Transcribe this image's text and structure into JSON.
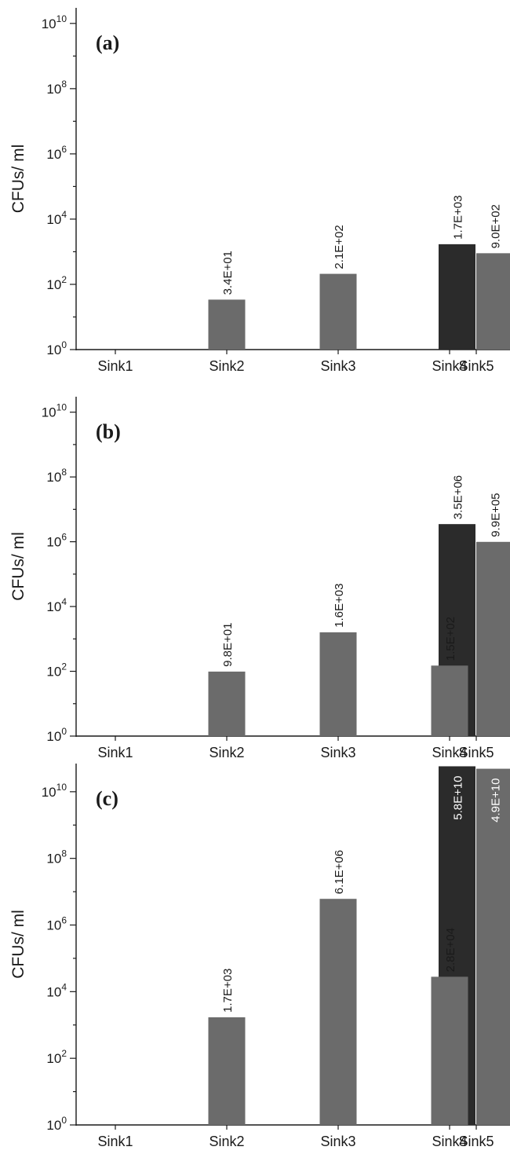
{
  "chart_data": [
    {
      "type": "bar",
      "panel_label": "(a)",
      "ylabel": "CFUs/ ml",
      "yscale": "log",
      "ylim": [
        1,
        30000000000
      ],
      "yticks": [
        1,
        100,
        10000,
        1000000,
        100000000,
        10000000000
      ],
      "ytick_labels": [
        {
          "base": "10",
          "exp": "0"
        },
        {
          "base": "10",
          "exp": "2"
        },
        {
          "base": "10",
          "exp": "4"
        },
        {
          "base": "10",
          "exp": "6"
        },
        {
          "base": "10",
          "exp": "8"
        },
        {
          "base": "10",
          "exp": "10"
        }
      ],
      "categories": [
        "Sink1",
        "Sink2",
        "Sink3",
        "Sink4",
        "Sink5"
      ],
      "series": [
        {
          "color": "#2b2b2b",
          "values": [
            null,
            null,
            null,
            null,
            1700
          ],
          "labels": [
            null,
            null,
            null,
            null,
            "1.7E+03"
          ]
        },
        {
          "color": "#6b6b6b",
          "values": [
            null,
            34,
            210,
            null,
            900
          ],
          "labels": [
            null,
            "3.4E+01",
            "2.1E+02",
            null,
            "9.0E+02"
          ]
        }
      ]
    },
    {
      "type": "bar",
      "panel_label": "(b)",
      "ylabel": "CFUs/ ml",
      "yscale": "log",
      "ylim": [
        1,
        30000000000
      ],
      "yticks": [
        1,
        100,
        10000,
        1000000,
        100000000,
        10000000000
      ],
      "ytick_labels": [
        {
          "base": "10",
          "exp": "0"
        },
        {
          "base": "10",
          "exp": "2"
        },
        {
          "base": "10",
          "exp": "4"
        },
        {
          "base": "10",
          "exp": "6"
        },
        {
          "base": "10",
          "exp": "8"
        },
        {
          "base": "10",
          "exp": "10"
        }
      ],
      "categories": [
        "Sink1",
        "Sink2",
        "Sink3",
        "Sink4",
        "Sink5"
      ],
      "series": [
        {
          "color": "#2b2b2b",
          "values": [
            null,
            null,
            null,
            null,
            3500000
          ],
          "labels": [
            null,
            null,
            null,
            null,
            "3.5E+06"
          ]
        },
        {
          "color": "#6b6b6b",
          "values": [
            null,
            98,
            1600,
            150,
            990000
          ],
          "labels": [
            null,
            "9.8E+01",
            "1.6E+03",
            "1.5E+02",
            "9.9E+05"
          ]
        }
      ]
    },
    {
      "type": "bar",
      "panel_label": "(c)",
      "ylabel": "CFUs/ ml",
      "yscale": "log",
      "ylim": [
        1,
        70000000000
      ],
      "yticks": [
        1,
        100,
        10000,
        1000000,
        100000000,
        10000000000
      ],
      "ytick_labels": [
        {
          "base": "10",
          "exp": "0"
        },
        {
          "base": "10",
          "exp": "2"
        },
        {
          "base": "10",
          "exp": "4"
        },
        {
          "base": "10",
          "exp": "6"
        },
        {
          "base": "10",
          "exp": "8"
        },
        {
          "base": "10",
          "exp": "10"
        }
      ],
      "categories": [
        "Sink1",
        "Sink2",
        "Sink3",
        "Sink4",
        "Sink5"
      ],
      "series": [
        {
          "color": "#2b2b2b",
          "values": [
            null,
            null,
            null,
            null,
            58000000000
          ],
          "labels": [
            null,
            null,
            null,
            null,
            "5.8E+10"
          ]
        },
        {
          "color": "#6b6b6b",
          "values": [
            null,
            1700,
            6100000,
            28000,
            49000000000
          ],
          "labels": [
            null,
            "1.7E+03",
            "6.1E+06",
            "2.8E+04",
            "4.9E+10"
          ]
        }
      ]
    }
  ]
}
